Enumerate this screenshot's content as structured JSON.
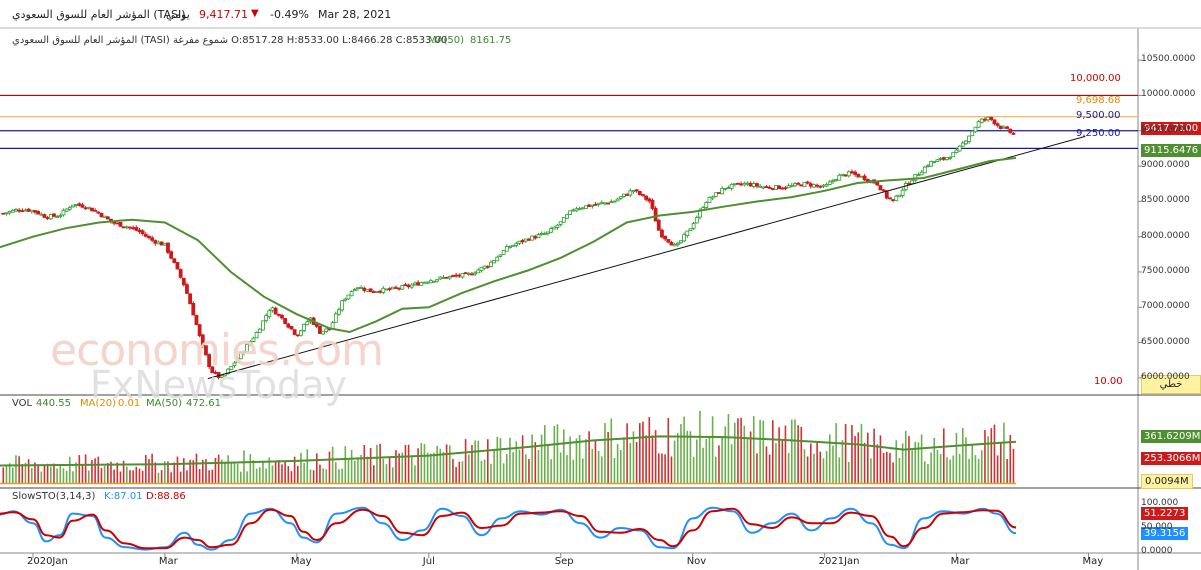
{
  "header": {
    "name": "المؤشر العام للسوق السعودي (TASI)",
    "period": "يومي",
    "last": "9,417.71",
    "change": "-0.49%",
    "date": "Mar 28, 2021"
  },
  "subheader": {
    "ohlc": "المؤشر العام للسوق السعودي (TASI) شموع مفرغة O:8517.28 H:8533.00 L:8466.28 C:8533.00",
    "ma_label": "MA(50)",
    "ma_value": "8161.75"
  },
  "colors": {
    "up": "#2a9d2a",
    "down": "#cc1a1a",
    "ma": "#4f8f32",
    "blue_line": "#1a1aa0",
    "red_line": "#cc0000",
    "orange_line": "#f0b040",
    "stoch_k": "#1e90ff",
    "stoch_d": "#cc0000"
  },
  "watermarks": [
    "economies.com",
    "FxNewsToday"
  ],
  "chart_data": [
    {
      "type": "line",
      "panel": "price",
      "ylim": [
        5800,
        10700
      ],
      "yticks": [
        "10500.0000",
        "10000.0000",
        "9500.0000",
        "9000.0000",
        "8500.0000",
        "8000.0000",
        "7500.0000",
        "7000.0000",
        "6500.0000",
        "6000.0000"
      ],
      "ytick_values": [
        10500,
        10000,
        9500,
        9000,
        8500,
        8000,
        7500,
        7000,
        6500,
        6000
      ],
      "x_labels": [
        "2020Jan",
        "Mar",
        "May",
        "Jul",
        "Sep",
        "Nov",
        "2021Jan",
        "Mar",
        "May"
      ],
      "x_label_months": [
        0,
        2,
        4,
        6,
        8,
        10,
        12,
        14,
        16
      ],
      "x_range_months": [
        -0.5,
        16.75
      ],
      "close": [
        {
          "m": -0.45,
          "v": 8330
        },
        {
          "m": -0.2,
          "v": 8390
        },
        {
          "m": 0.0,
          "v": 8370
        },
        {
          "m": 0.2,
          "v": 8280
        },
        {
          "m": 0.4,
          "v": 8300
        },
        {
          "m": 0.6,
          "v": 8460
        },
        {
          "m": 0.8,
          "v": 8430
        },
        {
          "m": 1.0,
          "v": 8330
        },
        {
          "m": 1.2,
          "v": 8200
        },
        {
          "m": 1.4,
          "v": 8150
        },
        {
          "m": 1.6,
          "v": 8080
        },
        {
          "m": 1.8,
          "v": 7950
        },
        {
          "m": 2.0,
          "v": 7880
        },
        {
          "m": 2.15,
          "v": 7600
        },
        {
          "m": 2.3,
          "v": 7300
        },
        {
          "m": 2.45,
          "v": 6850
        },
        {
          "m": 2.55,
          "v": 6500
        },
        {
          "m": 2.7,
          "v": 6100
        },
        {
          "m": 2.85,
          "v": 5990
        },
        {
          "m": 3.0,
          "v": 6150
        },
        {
          "m": 3.2,
          "v": 6400
        },
        {
          "m": 3.4,
          "v": 6650
        },
        {
          "m": 3.6,
          "v": 7000
        },
        {
          "m": 3.8,
          "v": 6820
        },
        {
          "m": 4.0,
          "v": 6600
        },
        {
          "m": 4.2,
          "v": 6850
        },
        {
          "m": 4.35,
          "v": 6650
        },
        {
          "m": 4.5,
          "v": 6700
        },
        {
          "m": 4.7,
          "v": 7100
        },
        {
          "m": 4.9,
          "v": 7300
        },
        {
          "m": 5.1,
          "v": 7230
        },
        {
          "m": 5.4,
          "v": 7250
        },
        {
          "m": 5.7,
          "v": 7300
        },
        {
          "m": 6.0,
          "v": 7380
        },
        {
          "m": 6.3,
          "v": 7430
        },
        {
          "m": 6.6,
          "v": 7460
        },
        {
          "m": 6.9,
          "v": 7600
        },
        {
          "m": 7.2,
          "v": 7850
        },
        {
          "m": 7.5,
          "v": 7970
        },
        {
          "m": 7.8,
          "v": 8050
        },
        {
          "m": 8.0,
          "v": 8200
        },
        {
          "m": 8.2,
          "v": 8400
        },
        {
          "m": 8.5,
          "v": 8450
        },
        {
          "m": 8.8,
          "v": 8500
        },
        {
          "m": 9.1,
          "v": 8660
        },
        {
          "m": 9.35,
          "v": 8500
        },
        {
          "m": 9.5,
          "v": 8050
        },
        {
          "m": 9.75,
          "v": 7850
        },
        {
          "m": 9.95,
          "v": 8100
        },
        {
          "m": 10.2,
          "v": 8500
        },
        {
          "m": 10.5,
          "v": 8700
        },
        {
          "m": 10.8,
          "v": 8750
        },
        {
          "m": 11.1,
          "v": 8700
        },
        {
          "m": 11.4,
          "v": 8700
        },
        {
          "m": 11.7,
          "v": 8750
        },
        {
          "m": 12.0,
          "v": 8700
        },
        {
          "m": 12.2,
          "v": 8850
        },
        {
          "m": 12.4,
          "v": 8900
        },
        {
          "m": 12.6,
          "v": 8830
        },
        {
          "m": 12.8,
          "v": 8750
        },
        {
          "m": 12.95,
          "v": 8550
        },
        {
          "m": 13.05,
          "v": 8500
        },
        {
          "m": 13.2,
          "v": 8700
        },
        {
          "m": 13.4,
          "v": 8880
        },
        {
          "m": 13.6,
          "v": 9050
        },
        {
          "m": 13.8,
          "v": 9100
        },
        {
          "m": 14.0,
          "v": 9200
        },
        {
          "m": 14.2,
          "v": 9450
        },
        {
          "m": 14.35,
          "v": 9640
        },
        {
          "m": 14.5,
          "v": 9680
        },
        {
          "m": 14.65,
          "v": 9560
        },
        {
          "m": 14.8,
          "v": 9490
        },
        {
          "m": 14.9,
          "v": 9418
        }
      ],
      "ma50": [
        {
          "m": -0.5,
          "v": 7850
        },
        {
          "m": 0.0,
          "v": 8000
        },
        {
          "m": 0.5,
          "v": 8120
        },
        {
          "m": 1.0,
          "v": 8200
        },
        {
          "m": 1.5,
          "v": 8240
        },
        {
          "m": 2.0,
          "v": 8200
        },
        {
          "m": 2.5,
          "v": 7950
        },
        {
          "m": 3.0,
          "v": 7500
        },
        {
          "m": 3.5,
          "v": 7150
        },
        {
          "m": 4.0,
          "v": 6900
        },
        {
          "m": 4.5,
          "v": 6700
        },
        {
          "m": 4.8,
          "v": 6650
        },
        {
          "m": 5.2,
          "v": 6800
        },
        {
          "m": 5.6,
          "v": 6980
        },
        {
          "m": 6.0,
          "v": 7000
        },
        {
          "m": 6.5,
          "v": 7200
        },
        {
          "m": 7.0,
          "v": 7370
        },
        {
          "m": 7.5,
          "v": 7520
        },
        {
          "m": 8.0,
          "v": 7700
        },
        {
          "m": 8.5,
          "v": 7930
        },
        {
          "m": 9.0,
          "v": 8200
        },
        {
          "m": 9.5,
          "v": 8300
        },
        {
          "m": 10.0,
          "v": 8350
        },
        {
          "m": 10.5,
          "v": 8430
        },
        {
          "m": 11.0,
          "v": 8500
        },
        {
          "m": 11.5,
          "v": 8560
        },
        {
          "m": 12.0,
          "v": 8650
        },
        {
          "m": 12.5,
          "v": 8760
        },
        {
          "m": 13.0,
          "v": 8800
        },
        {
          "m": 13.5,
          "v": 8830
        },
        {
          "m": 14.0,
          "v": 8950
        },
        {
          "m": 14.5,
          "v": 9070
        },
        {
          "m": 14.9,
          "v": 9115
        }
      ],
      "trendline": [
        {
          "m": 2.65,
          "v": 5990
        },
        {
          "m": 15.95,
          "v": 9420
        }
      ],
      "levels": [
        {
          "value": 10000,
          "label": "10,000.00",
          "color": "#cc0000"
        },
        {
          "value": 9698.68,
          "label": "9,698.68",
          "color": "#f0b040"
        },
        {
          "value": 9500,
          "label": "9,500.00",
          "color": "#1a1aa0"
        },
        {
          "value": 9250,
          "label": "9,250.00",
          "color": "#1a1aa0"
        }
      ],
      "last_price_tag": "9417.7100",
      "ma_tag": "9115.6476",
      "line_value_label": "10.00",
      "line_button": "خطي"
    },
    {
      "type": "bar",
      "panel": "volume",
      "title_items": [
        "VOL",
        "440.55",
        "MA(20)",
        "0.01",
        "MA(50)",
        "472.61"
      ],
      "tags": {
        "ma_large": "361.6209M",
        "volume": "253.3066M",
        "ma_small": "0.0094M"
      },
      "volume_range_m": [
        0,
        560
      ],
      "avg_volume": [
        {
          "m": -0.5,
          "v": 140
        },
        {
          "m": 2.0,
          "v": 150
        },
        {
          "m": 4.0,
          "v": 175
        },
        {
          "m": 6.0,
          "v": 215
        },
        {
          "m": 7.5,
          "v": 280
        },
        {
          "m": 8.5,
          "v": 330
        },
        {
          "m": 9.5,
          "v": 360
        },
        {
          "m": 10.5,
          "v": 355
        },
        {
          "m": 11.5,
          "v": 330
        },
        {
          "m": 12.5,
          "v": 300
        },
        {
          "m": 13.2,
          "v": 260
        },
        {
          "m": 14.0,
          "v": 290
        },
        {
          "m": 14.9,
          "v": 320
        }
      ]
    },
    {
      "type": "line",
      "panel": "stochastic",
      "title_items": [
        "SlowSTO(3,14,3)",
        "K:87.01",
        "D:88.86"
      ],
      "yticks": [
        "100.000",
        "50.000",
        "0.0000"
      ],
      "ytick_values": [
        100,
        50,
        0
      ],
      "tags": {
        "d": "51.2273",
        "k": "39.3156"
      },
      "k": [
        {
          "m": -0.5,
          "v": 78
        },
        {
          "m": -0.3,
          "v": 85
        },
        {
          "m": 0.0,
          "v": 60
        },
        {
          "m": 0.2,
          "v": 22
        },
        {
          "m": 0.4,
          "v": 35
        },
        {
          "m": 0.6,
          "v": 80
        },
        {
          "m": 0.9,
          "v": 75
        },
        {
          "m": 1.1,
          "v": 30
        },
        {
          "m": 1.4,
          "v": 10
        },
        {
          "m": 1.7,
          "v": 5
        },
        {
          "m": 2.0,
          "v": 10
        },
        {
          "m": 2.3,
          "v": 40
        },
        {
          "m": 2.5,
          "v": 15
        },
        {
          "m": 2.7,
          "v": 5
        },
        {
          "m": 3.0,
          "v": 25
        },
        {
          "m": 3.3,
          "v": 80
        },
        {
          "m": 3.6,
          "v": 90
        },
        {
          "m": 3.9,
          "v": 60
        },
        {
          "m": 4.1,
          "v": 30
        },
        {
          "m": 4.3,
          "v": 20
        },
        {
          "m": 4.6,
          "v": 80
        },
        {
          "m": 5.0,
          "v": 92
        },
        {
          "m": 5.3,
          "v": 60
        },
        {
          "m": 5.6,
          "v": 25
        },
        {
          "m": 5.9,
          "v": 45
        },
        {
          "m": 6.2,
          "v": 90
        },
        {
          "m": 6.5,
          "v": 75
        },
        {
          "m": 6.8,
          "v": 35
        },
        {
          "m": 7.1,
          "v": 70
        },
        {
          "m": 7.4,
          "v": 85
        },
        {
          "m": 7.7,
          "v": 78
        },
        {
          "m": 8.0,
          "v": 88
        },
        {
          "m": 8.3,
          "v": 60
        },
        {
          "m": 8.6,
          "v": 30
        },
        {
          "m": 8.9,
          "v": 50
        },
        {
          "m": 9.2,
          "v": 45
        },
        {
          "m": 9.5,
          "v": 10
        },
        {
          "m": 9.7,
          "v": 8
        },
        {
          "m": 10.0,
          "v": 70
        },
        {
          "m": 10.3,
          "v": 92
        },
        {
          "m": 10.6,
          "v": 85
        },
        {
          "m": 10.9,
          "v": 40
        },
        {
          "m": 11.2,
          "v": 60
        },
        {
          "m": 11.5,
          "v": 80
        },
        {
          "m": 11.8,
          "v": 45
        },
        {
          "m": 12.1,
          "v": 70
        },
        {
          "m": 12.4,
          "v": 90
        },
        {
          "m": 12.7,
          "v": 60
        },
        {
          "m": 13.0,
          "v": 15
        },
        {
          "m": 13.2,
          "v": 8
        },
        {
          "m": 13.5,
          "v": 70
        },
        {
          "m": 13.8,
          "v": 85
        },
        {
          "m": 14.1,
          "v": 80
        },
        {
          "m": 14.4,
          "v": 90
        },
        {
          "m": 14.6,
          "v": 80
        },
        {
          "m": 14.9,
          "v": 39
        }
      ],
      "d": [
        {
          "m": -0.5,
          "v": 80
        },
        {
          "m": -0.3,
          "v": 83
        },
        {
          "m": 0.0,
          "v": 68
        },
        {
          "m": 0.2,
          "v": 35
        },
        {
          "m": 0.4,
          "v": 30
        },
        {
          "m": 0.6,
          "v": 65
        },
        {
          "m": 0.9,
          "v": 78
        },
        {
          "m": 1.1,
          "v": 45
        },
        {
          "m": 1.4,
          "v": 18
        },
        {
          "m": 1.7,
          "v": 8
        },
        {
          "m": 2.0,
          "v": 8
        },
        {
          "m": 2.3,
          "v": 30
        },
        {
          "m": 2.5,
          "v": 25
        },
        {
          "m": 2.7,
          "v": 10
        },
        {
          "m": 3.0,
          "v": 15
        },
        {
          "m": 3.3,
          "v": 60
        },
        {
          "m": 3.6,
          "v": 88
        },
        {
          "m": 3.9,
          "v": 75
        },
        {
          "m": 4.1,
          "v": 42
        },
        {
          "m": 4.3,
          "v": 25
        },
        {
          "m": 4.6,
          "v": 60
        },
        {
          "m": 5.0,
          "v": 88
        },
        {
          "m": 5.3,
          "v": 75
        },
        {
          "m": 5.6,
          "v": 40
        },
        {
          "m": 5.9,
          "v": 35
        },
        {
          "m": 6.2,
          "v": 75
        },
        {
          "m": 6.5,
          "v": 82
        },
        {
          "m": 6.8,
          "v": 50
        },
        {
          "m": 7.1,
          "v": 55
        },
        {
          "m": 7.4,
          "v": 80
        },
        {
          "m": 7.7,
          "v": 82
        },
        {
          "m": 8.0,
          "v": 85
        },
        {
          "m": 8.3,
          "v": 75
        },
        {
          "m": 8.6,
          "v": 42
        },
        {
          "m": 8.9,
          "v": 40
        },
        {
          "m": 9.2,
          "v": 48
        },
        {
          "m": 9.5,
          "v": 25
        },
        {
          "m": 9.7,
          "v": 12
        },
        {
          "m": 10.0,
          "v": 45
        },
        {
          "m": 10.3,
          "v": 85
        },
        {
          "m": 10.6,
          "v": 90
        },
        {
          "m": 10.9,
          "v": 58
        },
        {
          "m": 11.2,
          "v": 50
        },
        {
          "m": 11.5,
          "v": 72
        },
        {
          "m": 11.8,
          "v": 60
        },
        {
          "m": 12.1,
          "v": 60
        },
        {
          "m": 12.4,
          "v": 82
        },
        {
          "m": 12.7,
          "v": 75
        },
        {
          "m": 13.0,
          "v": 32
        },
        {
          "m": 13.2,
          "v": 12
        },
        {
          "m": 13.5,
          "v": 50
        },
        {
          "m": 13.8,
          "v": 80
        },
        {
          "m": 14.1,
          "v": 83
        },
        {
          "m": 14.4,
          "v": 87
        },
        {
          "m": 14.6,
          "v": 86
        },
        {
          "m": 14.9,
          "v": 51
        }
      ]
    }
  ]
}
